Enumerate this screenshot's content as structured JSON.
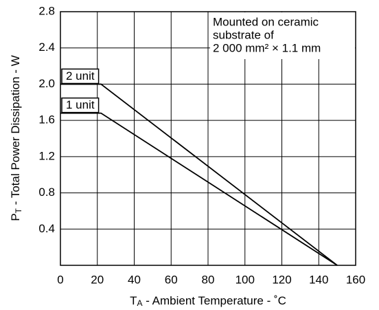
{
  "chart_data": {
    "type": "line",
    "annotation": [
      "Mounted on ceramic",
      "substrate of",
      "2 000 mm² × 1.1 mm"
    ],
    "x_label": [
      "T",
      "A",
      " - Ambient Temperature  - ˚C"
    ],
    "y_label": [
      "P",
      "T",
      " -  Total Power Dissipation - W"
    ],
    "x": [
      0,
      22,
      150
    ],
    "series": [
      {
        "name": "2 unit",
        "color": "#000000",
        "values": [
          2.0,
          2.0,
          0
        ]
      },
      {
        "name": "1 unit",
        "color": "#000000",
        "values": [
          1.68,
          1.68,
          0
        ]
      }
    ],
    "xlim": [
      0,
      160
    ],
    "xticks": [
      0,
      20,
      40,
      60,
      80,
      100,
      120,
      140,
      160
    ],
    "ylim": [
      0,
      2.8
    ],
    "yticks": [
      0.4,
      0.8,
      1.2,
      1.6,
      {
        "value": 2,
        "label": "2.0"
      },
      2.4,
      2.8
    ],
    "grid": true
  }
}
